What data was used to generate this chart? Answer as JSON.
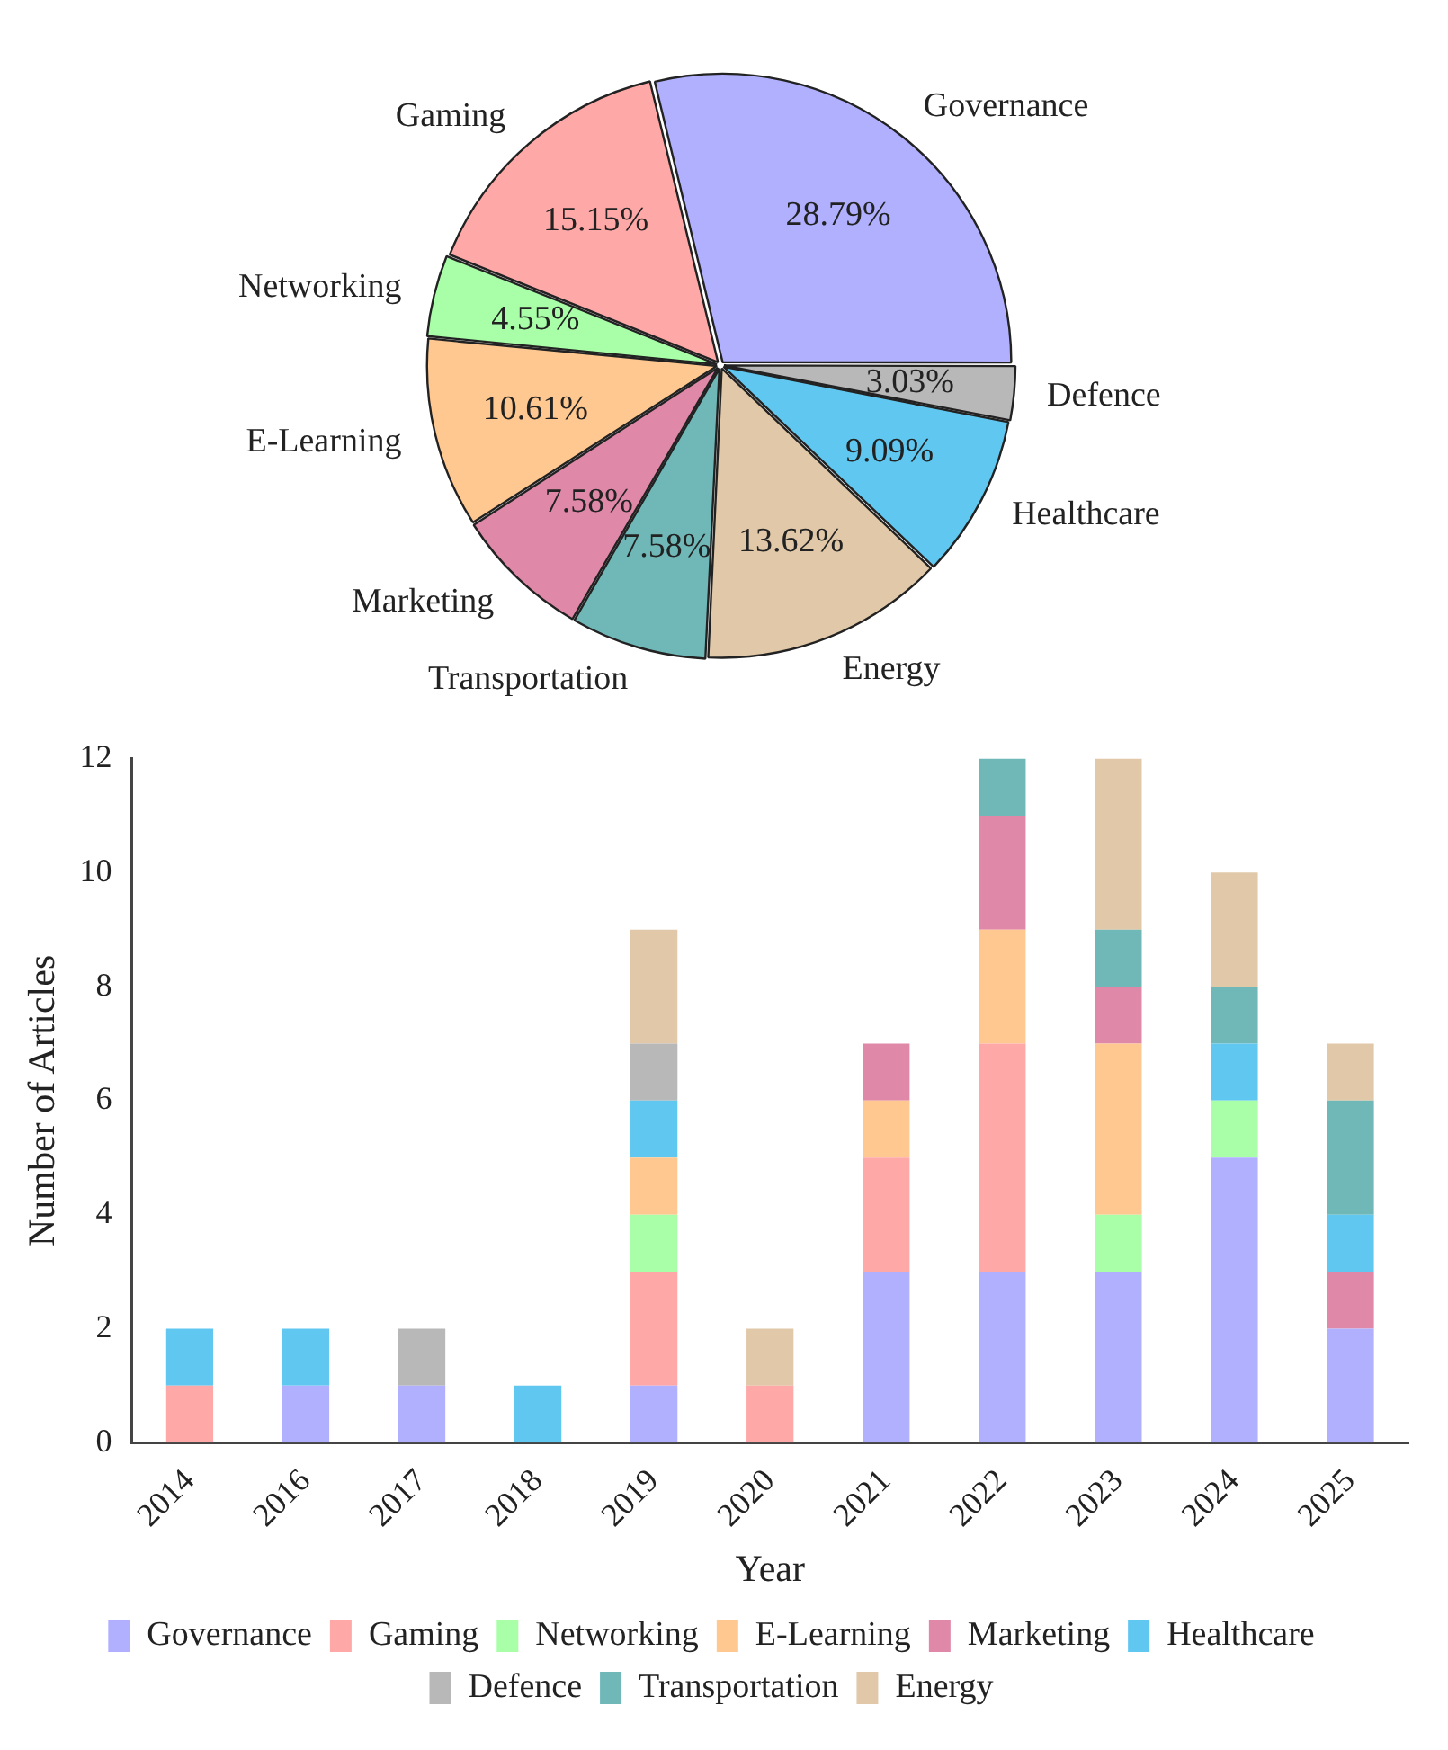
{
  "chart_data": [
    {
      "type": "pie",
      "categories": [
        "Governance",
        "Defence",
        "Healthcare",
        "Energy",
        "Transportation",
        "Marketing",
        "E-Learning",
        "Networking",
        "Gaming"
      ],
      "values": [
        28.79,
        3.03,
        9.09,
        13.62,
        7.58,
        7.58,
        10.61,
        4.55,
        15.15
      ],
      "colors": [
        "#b0b0ff",
        "#b8b8b8",
        "#60c8f0",
        "#e0c8a8",
        "#70b8b8",
        "#e088a8",
        "#ffc890",
        "#a8ffa8",
        "#ffa8a8"
      ],
      "value_labels": [
        "28.79%",
        "3.03%",
        "9.09%",
        "13.62%",
        "7.58%",
        "7.58%",
        "10.61%",
        "4.55%",
        "15.15%"
      ],
      "legend": false
    },
    {
      "type": "bar",
      "stacked": true,
      "xlabel": "Year",
      "ylabel": "Number of Articles",
      "categories": [
        "2014",
        "2016",
        "2017",
        "2018",
        "2019",
        "2020",
        "2021",
        "2022",
        "2023",
        "2024",
        "2025"
      ],
      "ylim": [
        0,
        12
      ],
      "yticks": [
        0,
        2,
        4,
        6,
        8,
        10,
        12
      ],
      "grid": false,
      "legend": "bottom",
      "series": [
        {
          "name": "Governance",
          "color": "#b0b0ff",
          "values": [
            0,
            1,
            1,
            0,
            1,
            0,
            3,
            3,
            3,
            5,
            2
          ]
        },
        {
          "name": "Gaming",
          "color": "#ffa8a8",
          "values": [
            1,
            0,
            0,
            0,
            2,
            1,
            2,
            4,
            0,
            0,
            0
          ]
        },
        {
          "name": "Networking",
          "color": "#a8ffa8",
          "values": [
            0,
            0,
            0,
            0,
            1,
            0,
            0,
            0,
            1,
            1,
            0
          ]
        },
        {
          "name": "E-Learning",
          "color": "#ffc890",
          "values": [
            0,
            0,
            0,
            0,
            1,
            0,
            1,
            2,
            3,
            0,
            0
          ]
        },
        {
          "name": "Marketing",
          "color": "#e088a8",
          "values": [
            0,
            0,
            0,
            0,
            0,
            0,
            1,
            2,
            1,
            0,
            1
          ]
        },
        {
          "name": "Healthcare",
          "color": "#60c8f0",
          "values": [
            1,
            1,
            0,
            1,
            1,
            0,
            0,
            0,
            0,
            1,
            1
          ]
        },
        {
          "name": "Defence",
          "color": "#b8b8b8",
          "values": [
            0,
            0,
            1,
            0,
            1,
            0,
            0,
            0,
            0,
            0,
            0
          ]
        },
        {
          "name": "Transportation",
          "color": "#70b8b8",
          "values": [
            0,
            0,
            0,
            0,
            0,
            0,
            0,
            1,
            1,
            1,
            2
          ]
        },
        {
          "name": "Energy",
          "color": "#e0c8a8",
          "values": [
            0,
            0,
            0,
            0,
            2,
            1,
            0,
            0,
            3,
            2,
            1
          ]
        }
      ]
    }
  ]
}
